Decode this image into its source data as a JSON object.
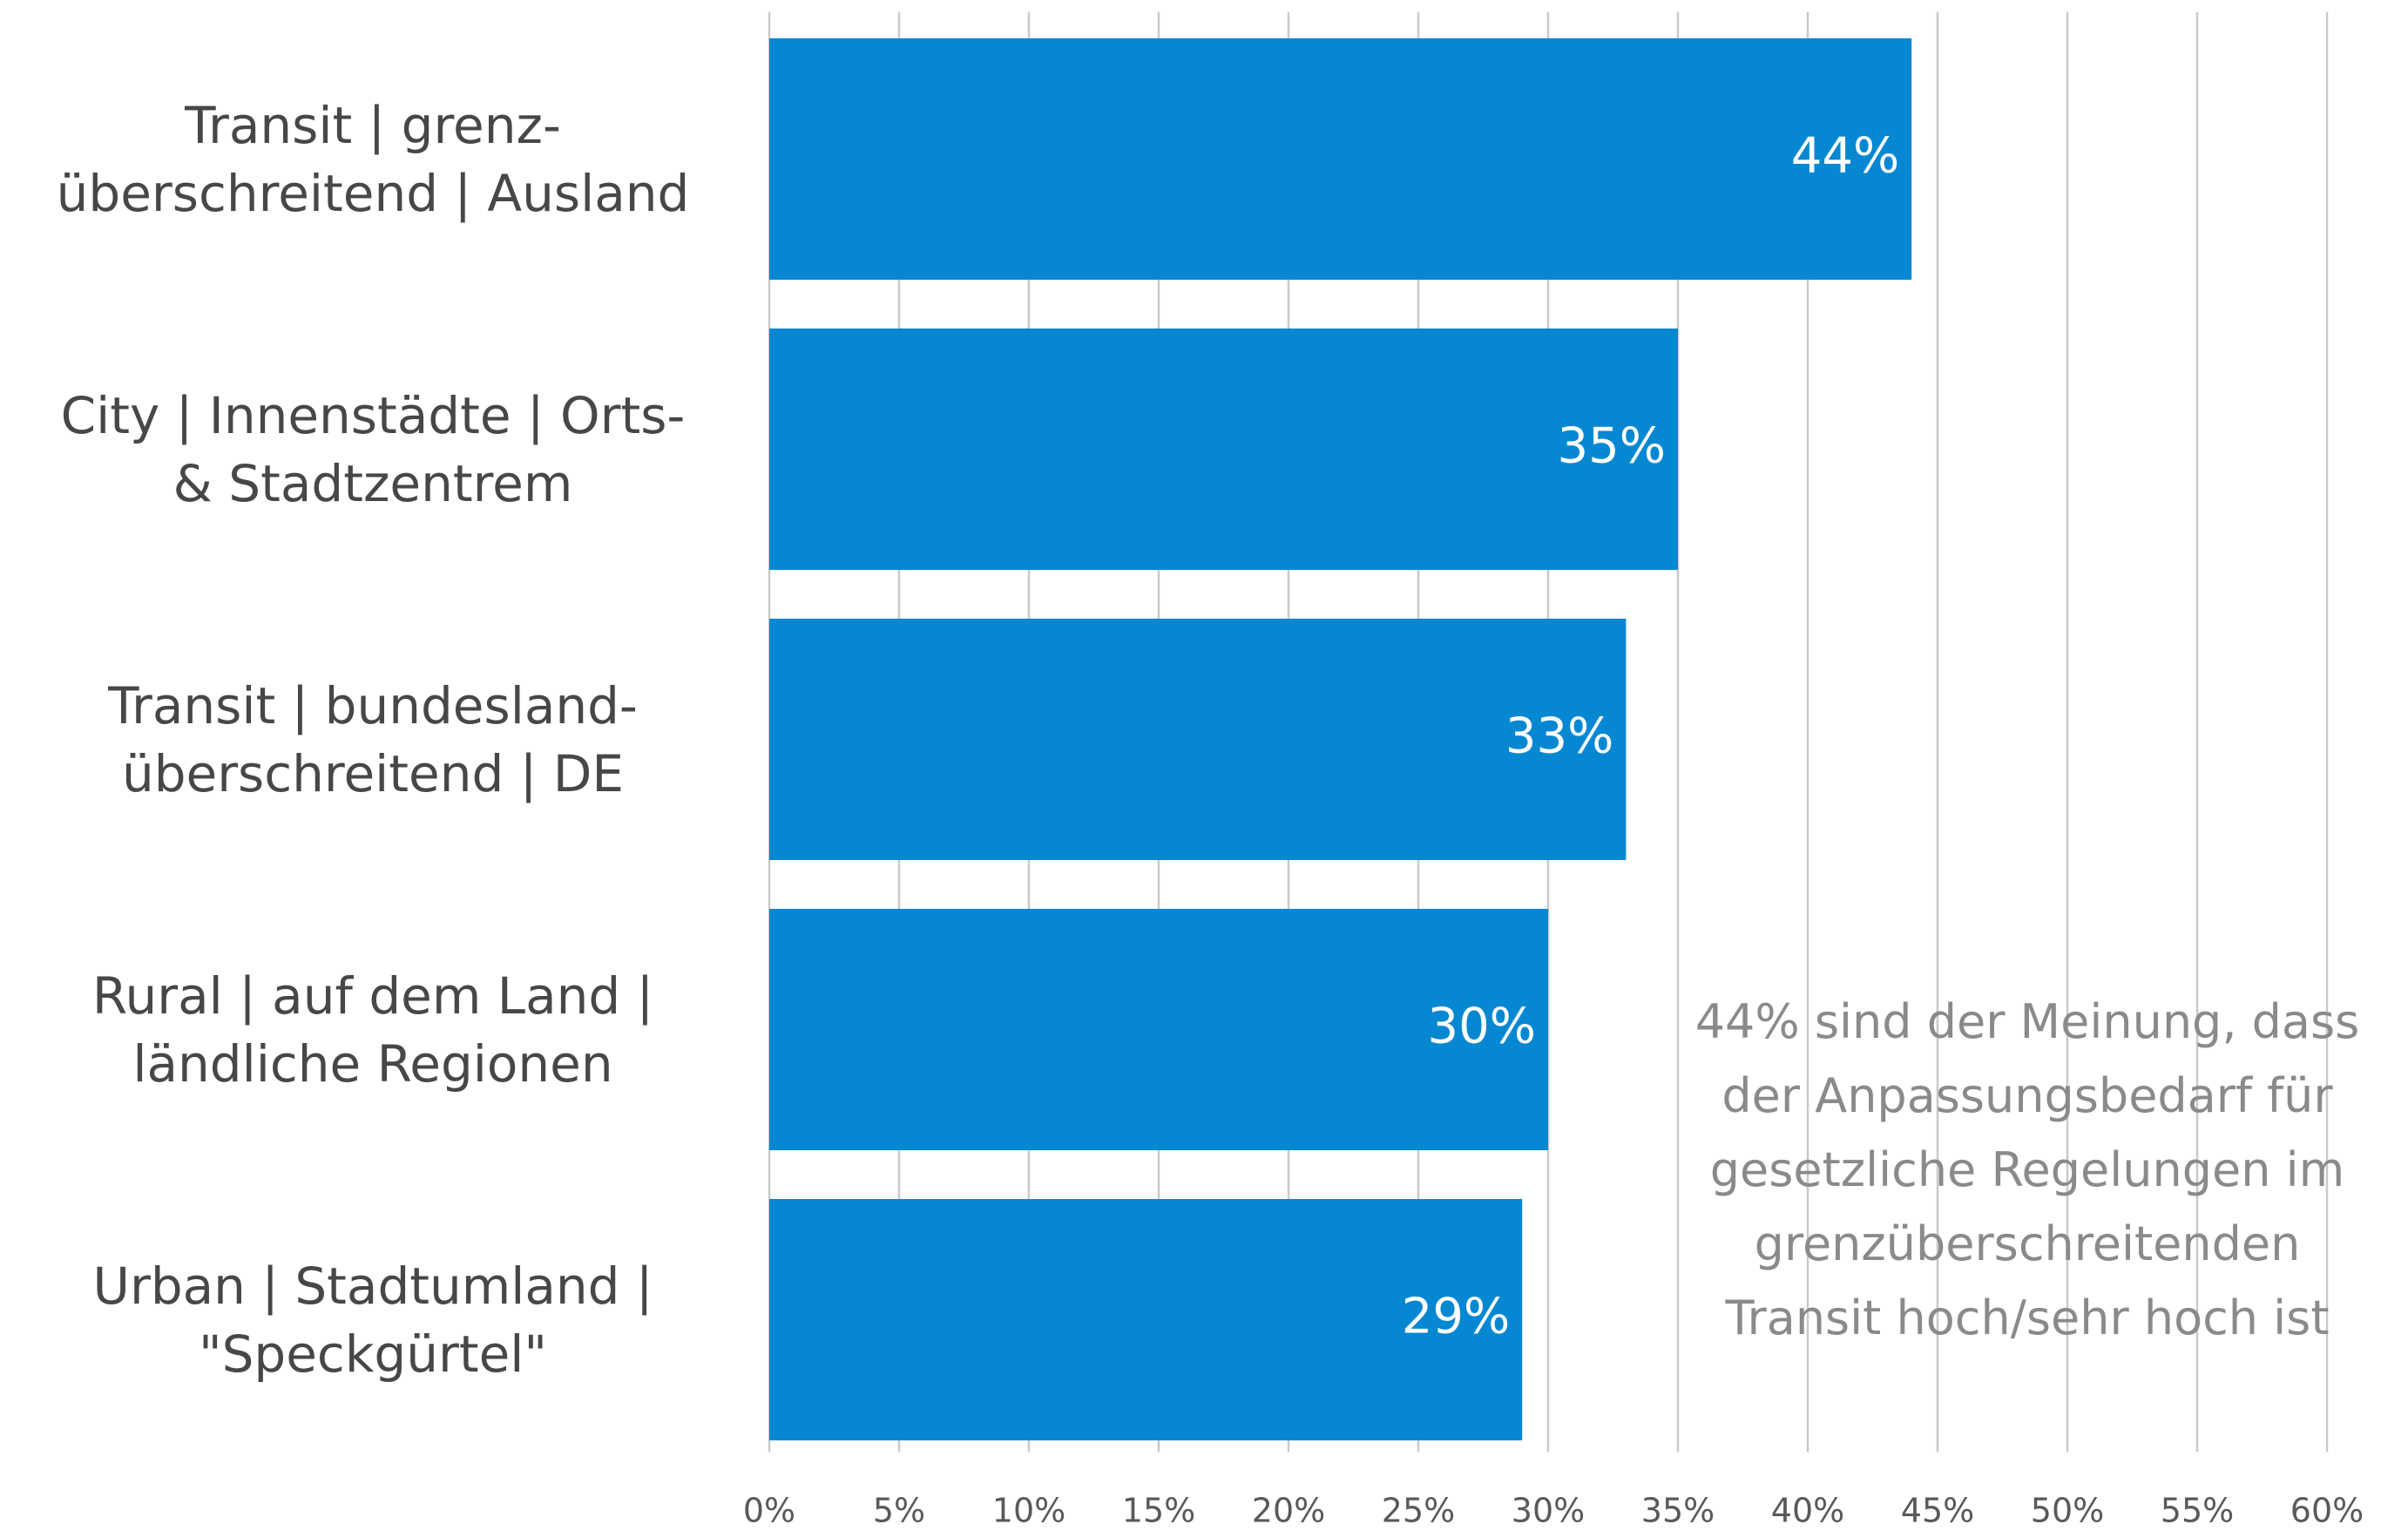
{
  "chart_data": {
    "type": "bar",
    "orientation": "horizontal",
    "categories": [
      "Transit | grenz-\nüberschreitend | Ausland",
      "City | Innenstädte | Orts-\n& Stadtzentrem",
      "Transit | bundesland-\nüberschreitend | DE",
      "Rural | auf dem Land |\nländliche Regionen",
      "Urban | Stadtumland |\n\"Speckgürtel\""
    ],
    "values": [
      44,
      35,
      33,
      30,
      29
    ],
    "value_labels": [
      "44%",
      "35%",
      "33%",
      "30%",
      "29%"
    ],
    "color": "#0588d1",
    "xlim": [
      0,
      60
    ],
    "xticks": [
      {
        "value": 0,
        "label": "0%"
      },
      {
        "value": 5,
        "label": "5%"
      },
      {
        "value": 10,
        "label": "10%"
      },
      {
        "value": 15,
        "label": "15%"
      },
      {
        "value": 20,
        "label": "20%"
      },
      {
        "value": 25,
        "label": "25%"
      },
      {
        "value": 30,
        "label": "30%"
      },
      {
        "value": 35,
        "label": "35%"
      },
      {
        "value": 40,
        "label": "40%"
      },
      {
        "value": 45,
        "label": "45%"
      },
      {
        "value": 50,
        "label": "50%"
      },
      {
        "value": 55,
        "label": "55%"
      },
      {
        "value": 60,
        "label": "60%"
      }
    ],
    "grid": true,
    "annotation": "44% sind der Meinung, dass\nder Anpassungsbedarf für\ngesetzliche Regelungen im\ngrenzüberschreitenden\nTransit hoch/sehr hoch ist"
  }
}
